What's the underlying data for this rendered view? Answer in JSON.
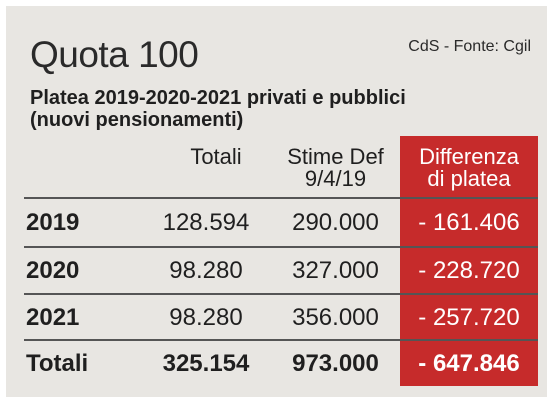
{
  "title": "Quota 100",
  "source": "CdS - Fonte: Cgil",
  "subtitle_line1": "Platea 2019-2020-2021 privati e pubblici",
  "subtitle_line2": "(nuovi pensionamenti)",
  "columns": {
    "totali": "Totali",
    "stime_line1": "Stime Def",
    "stime_line2": "9/4/19",
    "diff_line1": "Differenza",
    "diff_line2": "di platea"
  },
  "rows": [
    {
      "label": "2019",
      "totali": "128.594",
      "stime": "290.000",
      "differenza": "- 161.406"
    },
    {
      "label": "2020",
      "totali": "98.280",
      "stime": "327.000",
      "differenza": "- 228.720"
    },
    {
      "label": "2021",
      "totali": "98.280",
      "stime": "356.000",
      "differenza": "- 257.720"
    }
  ],
  "total_row": {
    "label": "Totali",
    "totali": "325.154",
    "stime": "973.000",
    "differenza": "- 647.846"
  },
  "colors": {
    "background": "#e8e6e2",
    "accent_red": "#c62b2b",
    "text": "#1f1f1f"
  }
}
